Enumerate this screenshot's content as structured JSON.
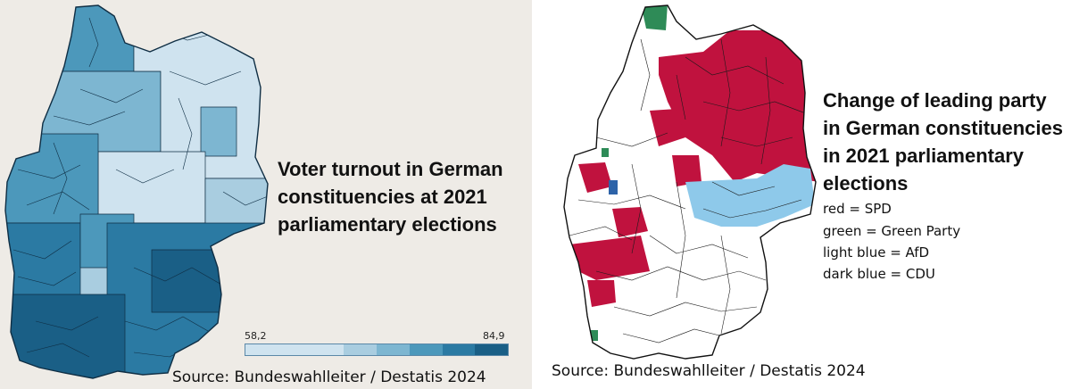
{
  "left": {
    "title_lines": [
      "Voter turnout in German",
      "constituencies at 2021",
      "parliamentary elections"
    ],
    "scale": {
      "min": "58,2",
      "max": "84,9"
    },
    "scale_colors": [
      "#cfe3ef",
      "#cfe3ef",
      "#cfe3ef",
      "#a9cde0",
      "#7db6d1",
      "#4c98bb",
      "#2b7aa3",
      "#1a5f86"
    ],
    "source": "Source: Bundeswahlleiter / Destatis 2024",
    "colors": {
      "light": "#cfe3ef",
      "mid": "#7db6d1",
      "dark": "#2b7aa3",
      "darkest": "#1a5f86"
    }
  },
  "right": {
    "title_lines": [
      "Change of leading party",
      "in German constituencies",
      "in 2021 parliamentary",
      "elections"
    ],
    "legend": [
      "red = SPD",
      "green = Green Party",
      "light blue = AfD",
      "dark blue = CDU"
    ],
    "source": "Source: Bundeswahlleiter / Destatis 2024",
    "colors": {
      "spd": "#c0123e",
      "green": "#2e8b57",
      "afd": "#8ec9ea",
      "cdu": "#2d63a8",
      "none": "#ffffff"
    }
  }
}
